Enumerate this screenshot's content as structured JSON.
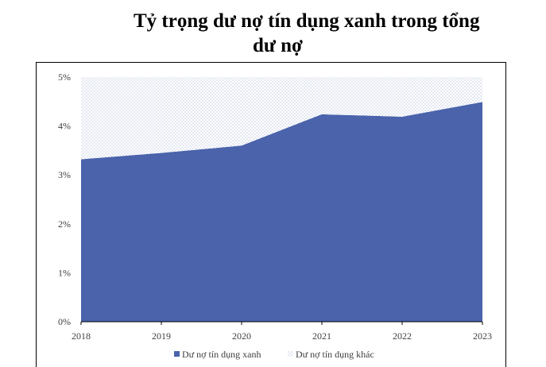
{
  "title": {
    "line1": "Tỷ trọng dư nợ tín dụng xanh trong tổng",
    "line2": "dư nợ"
  },
  "chart_data": {
    "type": "area",
    "stacked": true,
    "x": [
      "2018",
      "2019",
      "2020",
      "2021",
      "2022",
      "2023"
    ],
    "series": [
      {
        "name": "Dư nợ tín dụng xanh",
        "values": [
          3.32,
          3.45,
          3.6,
          4.24,
          4.19,
          4.49
        ],
        "color": "#4a63ab",
        "fill": "solid"
      },
      {
        "name": "Dư nợ tín dụng khác",
        "values": [
          1.68,
          1.55,
          1.4,
          0.76,
          0.81,
          0.51
        ],
        "color": "#9aa6c8",
        "fill": "dotted-pattern"
      }
    ],
    "ylim": [
      0,
      5
    ],
    "yticks": [
      "0%",
      "1%",
      "2%",
      "3%",
      "4%",
      "5%"
    ],
    "ylabel": "",
    "xlabel": "",
    "grid": false,
    "legend_position": "bottom"
  }
}
